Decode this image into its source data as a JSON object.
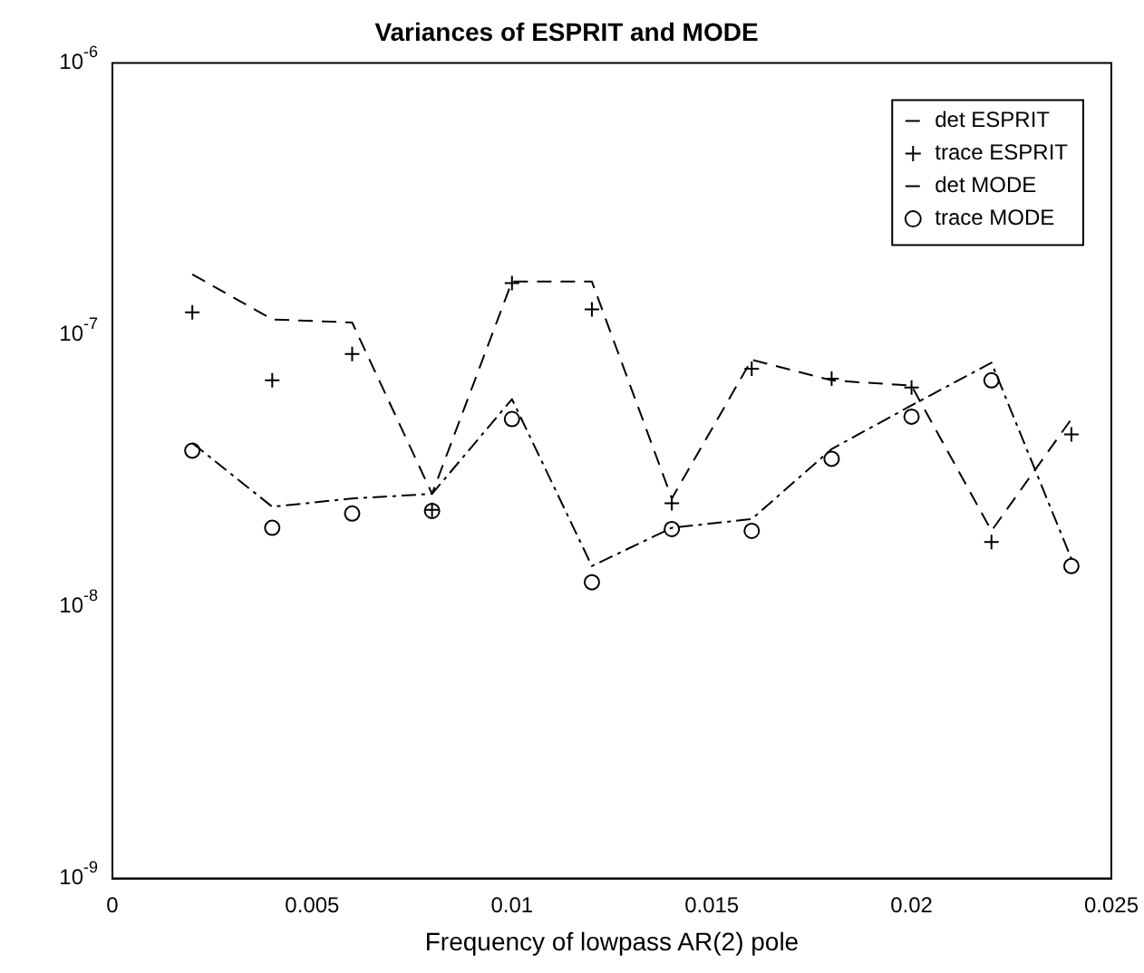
{
  "chart_data": {
    "type": "line",
    "title": "Variances of ESPRIT and MODE",
    "xlabel": "Frequency of lowpass AR(2) pole",
    "x": [
      0.002,
      0.004,
      0.006,
      0.008,
      0.01,
      0.012,
      0.014,
      0.016,
      0.018,
      0.02,
      0.022,
      0.024
    ],
    "series": [
      {
        "name": "det ESPRIT",
        "type": "line",
        "color": "#000000",
        "line_style": "dashed",
        "marker": "none",
        "values": [
          1.67e-07,
          1.14e-07,
          1.11e-07,
          2.6e-08,
          1.57e-07,
          1.57e-07,
          2.5e-08,
          8.1e-08,
          6.8e-08,
          6.5e-08,
          1.9e-08,
          4.9e-08
        ]
      },
      {
        "name": "trace ESPRIT",
        "type": "scatter",
        "color": "#000000",
        "marker": "cross",
        "values": [
          1.21e-07,
          6.8e-08,
          8.5e-08,
          2.27e-08,
          1.55e-07,
          1.24e-07,
          2.4e-08,
          7.5e-08,
          6.9e-08,
          6.4e-08,
          1.73e-08,
          4.3e-08
        ]
      },
      {
        "name": "det MODE",
        "type": "line",
        "color": "#000000",
        "line_style": "dotted",
        "marker": "none",
        "values": [
          4e-08,
          2.33e-08,
          2.5e-08,
          2.6e-08,
          5.8e-08,
          1.41e-08,
          1.95e-08,
          2.1e-08,
          3.8e-08,
          5.5e-08,
          7.9e-08,
          1.5e-08
        ]
      },
      {
        "name": "trace MODE",
        "type": "scatter",
        "color": "#000000",
        "marker": "circle",
        "values": [
          3.75e-08,
          1.95e-08,
          2.2e-08,
          2.25e-08,
          4.9e-08,
          1.23e-08,
          1.93e-08,
          1.9e-08,
          3.5e-08,
          5e-08,
          6.8e-08,
          1.41e-08
        ]
      }
    ],
    "log": "y",
    "xlim": [
      0,
      0.025
    ],
    "xticks": [
      0,
      0.005,
      0.01,
      0.015,
      0.02,
      0.025
    ],
    "ylim": [
      1e-09,
      1e-06
    ],
    "yticks": [
      {
        "value": 1e-09,
        "label": "10$^{-9}$"
      },
      {
        "value": 1e-08,
        "label": "10$^{-8}$"
      },
      {
        "value": 1e-07,
        "label": "10$^{-7}$"
      },
      {
        "value": 1e-06,
        "label": "10$^{-6}$"
      }
    ],
    "grid": false,
    "legend": "top right"
  }
}
